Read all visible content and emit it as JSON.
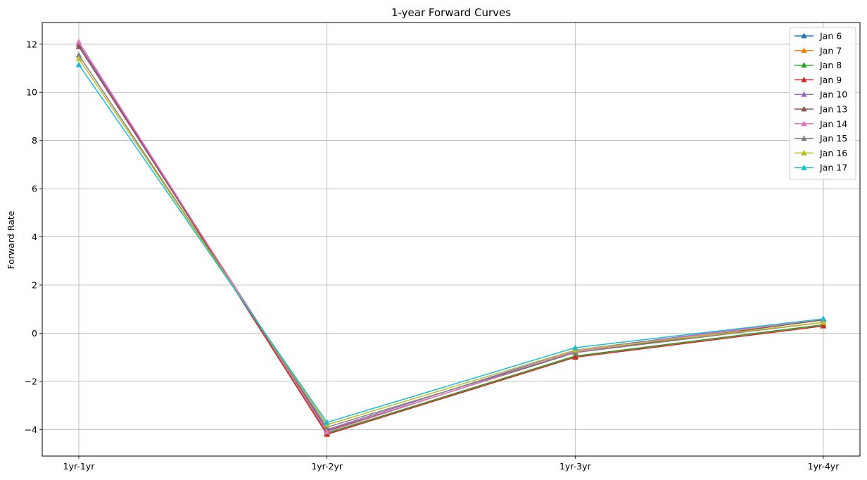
{
  "chart_data": {
    "type": "line",
    "title": "1-year Forward Curves",
    "xlabel": "",
    "ylabel": "Forward Rate",
    "categories": [
      "1yr-1yr",
      "1yr-2yr",
      "1yr-3yr",
      "1yr-4yr"
    ],
    "ylim": [
      -5.1,
      12.9
    ],
    "yticks": [
      -4,
      -2,
      0,
      2,
      4,
      6,
      8,
      10,
      12
    ],
    "ytick_labels": [
      "−4",
      "−2",
      "0",
      "2",
      "4",
      "6",
      "8",
      "10",
      "12"
    ],
    "grid": true,
    "marker": "triangle-up",
    "legend_position": "top-right",
    "series": [
      {
        "name": "Jan 6",
        "color": "#1f77b4",
        "values": [
          12.0,
          -4.15,
          -0.95,
          0.35
        ]
      },
      {
        "name": "Jan 7",
        "color": "#ff7f0e",
        "values": [
          12.0,
          -4.15,
          -0.95,
          0.35
        ]
      },
      {
        "name": "Jan 8",
        "color": "#2ca02c",
        "values": [
          12.0,
          -4.15,
          -0.95,
          0.35
        ]
      },
      {
        "name": "Jan 9",
        "color": "#d62728",
        "values": [
          12.0,
          -4.2,
          -1.0,
          0.3
        ]
      },
      {
        "name": "Jan 10",
        "color": "#9467bd",
        "values": [
          12.0,
          -4.0,
          -0.7,
          0.6
        ]
      },
      {
        "name": "Jan 13",
        "color": "#8c564b",
        "values": [
          11.9,
          -4.05,
          -0.8,
          0.55
        ]
      },
      {
        "name": "Jan 14",
        "color": "#e377c2",
        "values": [
          12.1,
          -4.1,
          -0.75,
          0.6
        ]
      },
      {
        "name": "Jan 15",
        "color": "#7f7f7f",
        "values": [
          11.55,
          -3.9,
          -0.8,
          0.45
        ]
      },
      {
        "name": "Jan 16",
        "color": "#bcbd22",
        "values": [
          11.4,
          -3.8,
          -0.7,
          0.45
        ]
      },
      {
        "name": "Jan 17",
        "color": "#17becf",
        "values": [
          11.15,
          -3.7,
          -0.6,
          0.6
        ]
      }
    ]
  }
}
